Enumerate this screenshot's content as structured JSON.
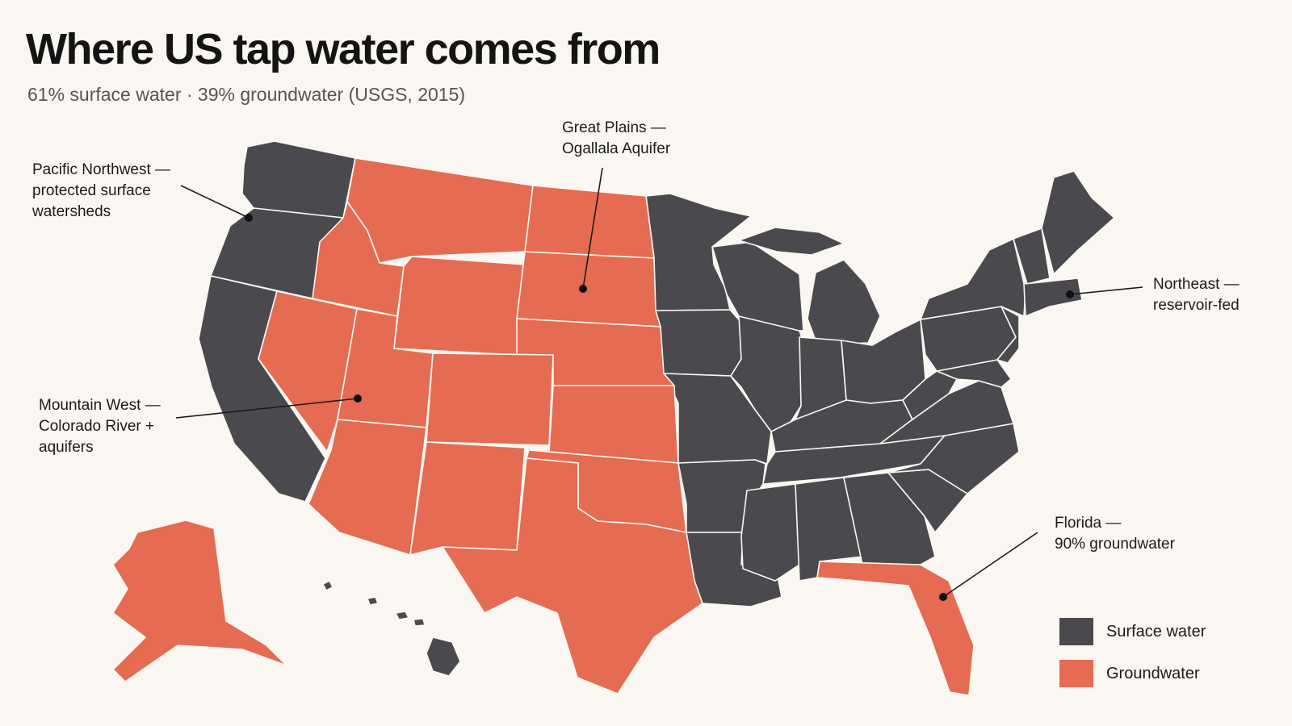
{
  "title": "Where US tap water comes from",
  "subtitle": "61% surface water · 39% groundwater (USGS, 2015)",
  "colors": {
    "surface": "#4a4a4e",
    "ground": "#e56b52",
    "border": "#faf7f2",
    "background": "#faf7f2"
  },
  "annotations": [
    {
      "id": "pacific-northwest",
      "lines": [
        "Pacific Northwest —",
        "protected surface",
        "watersheds"
      ]
    },
    {
      "id": "great-plains",
      "lines": [
        "Great Plains —",
        "Ogallala Aquifer"
      ]
    },
    {
      "id": "northeast",
      "lines": [
        "Northeast —",
        "reservoir-fed"
      ]
    },
    {
      "id": "mountain-west",
      "lines": [
        "Mountain West —",
        "Colorado River +",
        "aquifers"
      ]
    },
    {
      "id": "florida",
      "lines": [
        "Florida —",
        "90% groundwater"
      ]
    }
  ],
  "legend": [
    {
      "label": "Surface water",
      "color": "#4a4a4e"
    },
    {
      "label": "Groundwater",
      "color": "#e56b52"
    }
  ]
}
